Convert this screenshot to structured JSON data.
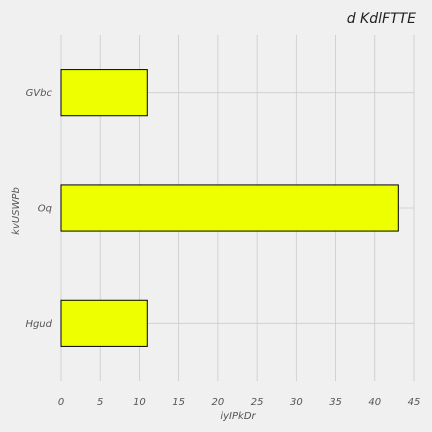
{
  "chart_data": {
    "type": "bar",
    "orientation": "horizontal",
    "title": "d KdlFTTE",
    "xlabel": "iyIPkDr",
    "ylabel": "kvUSWPb",
    "categories": [
      "GVbc",
      "Oq",
      "Hgud"
    ],
    "values": [
      11,
      43,
      11
    ],
    "xlim": [
      0,
      45
    ],
    "xticks": [
      "0",
      "5",
      "10",
      "15",
      "20",
      "25",
      "30",
      "35",
      "40",
      "45"
    ],
    "grid": true,
    "bar_color": "#eeff00",
    "bar_edge_color": "#000000",
    "background_color": "#f0f0f0"
  }
}
